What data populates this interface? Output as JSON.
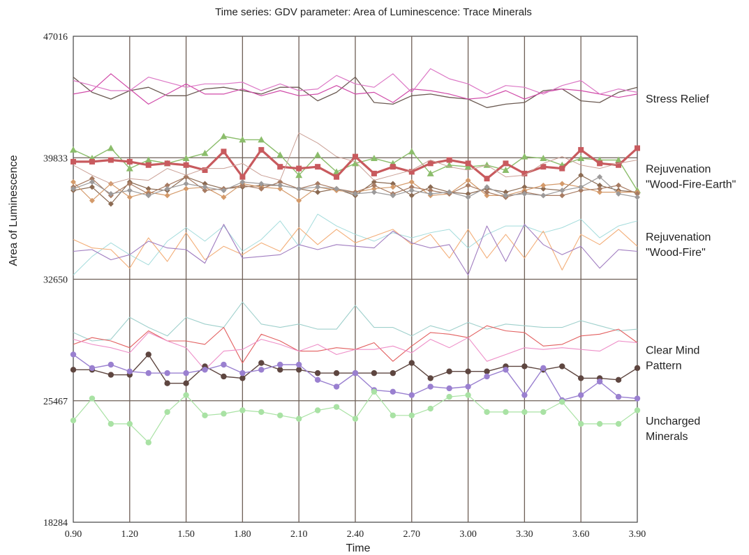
{
  "chart_data": {
    "type": "line",
    "title": "Time series: GDV parameter: Area of Luminescence: Trace Minerals",
    "xlabel": "Time",
    "ylabel": "Area of Luminescence",
    "xlim": [
      0.9,
      3.9
    ],
    "ylim": [
      18284,
      47016
    ],
    "x_ticks": [
      "0.90",
      "1.20",
      "1.50",
      "1.80",
      "2.10",
      "2.40",
      "2.70",
      "3.00",
      "3.30",
      "3.60",
      "3.90"
    ],
    "y_ticks": [
      "47016",
      "39833",
      "32650",
      "25467",
      "18284"
    ],
    "grid": true,
    "x": [
      0.9,
      1.0,
      1.1,
      1.2,
      1.3,
      1.4,
      1.5,
      1.6,
      1.7,
      1.8,
      1.9,
      2.0,
      2.1,
      2.2,
      2.3,
      2.4,
      2.5,
      2.6,
      2.7,
      2.8,
      2.9,
      3.0,
      3.1,
      3.2,
      3.3,
      3.4,
      3.5,
      3.6,
      3.7,
      3.8,
      3.9
    ],
    "group_labels": [
      {
        "lines": [
          "Stress Relief"
        ],
        "y": 43300
      },
      {
        "lines": [
          "Rejuvenation",
          "\"Wood-Fire-Earth\""
        ],
        "y": 38700
      },
      {
        "lines": [
          "Rejuvenation",
          "\"Wood-Fire\""
        ],
        "y": 34700
      },
      {
        "lines": [
          "Clear Mind",
          "Pattern"
        ],
        "y": 28000
      },
      {
        "lines": [
          "Uncharged",
          "Minerals"
        ],
        "y": 23800
      }
    ],
    "series": [
      {
        "color": "#6b5a52",
        "width": 1.3,
        "marker": "none",
        "values": [
          44600,
          43700,
          43300,
          43800,
          44000,
          43500,
          43500,
          43900,
          44000,
          43800,
          43600,
          44000,
          44000,
          43200,
          43700,
          44600,
          43100,
          43000,
          43500,
          43600,
          43400,
          43300,
          42800,
          43000,
          43100,
          43800,
          43900,
          43200,
          43100,
          43700,
          44000
        ]
      },
      {
        "color": "#d04aa8",
        "width": 1.2,
        "marker": "none",
        "values": [
          43600,
          43800,
          44800,
          43900,
          43000,
          43600,
          44200,
          43600,
          43600,
          43900,
          43500,
          43800,
          43500,
          43600,
          44100,
          43600,
          43700,
          43100,
          43900,
          43800,
          43600,
          43300,
          43400,
          43800,
          43300,
          43700,
          43900,
          43800,
          43600,
          43400,
          43600
        ]
      },
      {
        "color": "#dc77c5",
        "width": 1.2,
        "marker": "none",
        "values": [
          44400,
          44100,
          43800,
          43800,
          44600,
          44300,
          44000,
          44200,
          44200,
          44300,
          43800,
          44200,
          43800,
          43900,
          44700,
          44200,
          44000,
          44800,
          43700,
          45100,
          44500,
          44200,
          43600,
          44100,
          44000,
          43600,
          44100,
          44400,
          43600,
          43900,
          43700
        ]
      },
      {
        "color": "#8bbd6b",
        "width": 1.4,
        "marker": "triangle",
        "values": [
          40300,
          39800,
          40400,
          39200,
          39700,
          39500,
          39800,
          40100,
          41100,
          40900,
          40900,
          40000,
          38800,
          40000,
          39000,
          39500,
          39800,
          39500,
          40200,
          38900,
          39400,
          39300,
          39400,
          39100,
          39900,
          39800,
          39400,
          39800,
          39700,
          39700,
          37900
        ]
      },
      {
        "color": "#c85a5e",
        "width": 3.2,
        "marker": "square",
        "values": [
          39600,
          39600,
          39700,
          39600,
          39400,
          39500,
          39400,
          39100,
          40200,
          38700,
          40300,
          39300,
          39200,
          39300,
          38700,
          39900,
          38900,
          39300,
          39000,
          39500,
          39700,
          39500,
          38600,
          39500,
          38900,
          39300,
          39200,
          40300,
          39500,
          39400,
          40400
        ]
      },
      {
        "color": "#8b6a52",
        "width": 1.2,
        "marker": "diamond",
        "values": [
          37900,
          38100,
          37100,
          38400,
          38000,
          37900,
          38700,
          38300,
          38000,
          38100,
          38200,
          38200,
          38000,
          37800,
          38000,
          37600,
          38400,
          38300,
          37600,
          38100,
          37800,
          37700,
          38000,
          37800,
          38100,
          38000,
          37900,
          38800,
          38200,
          37900,
          37800
        ]
      },
      {
        "color": "#d49a6a",
        "width": 1.2,
        "marker": "diamond",
        "values": [
          38400,
          37300,
          38300,
          37500,
          37800,
          37600,
          38000,
          38100,
          37500,
          38300,
          38100,
          38000,
          37300,
          38100,
          37900,
          37800,
          38000,
          38100,
          38400,
          37600,
          37700,
          38500,
          37600,
          37600,
          37900,
          38200,
          38300,
          38100,
          37800,
          37800,
          37800
        ]
      },
      {
        "color": "#a77b62",
        "width": 1.2,
        "marker": "diamond",
        "values": [
          38100,
          38600,
          37600,
          38300,
          37700,
          38200,
          38700,
          37900,
          38000,
          38200,
          38000,
          38400,
          38000,
          38300,
          38000,
          37800,
          38200,
          37700,
          38100,
          37900,
          37700,
          38200,
          37800,
          37500,
          37800,
          37600,
          37600,
          37900,
          38000,
          38200,
          37700
        ]
      },
      {
        "color": "#9c9a9a",
        "width": 1.2,
        "marker": "diamond",
        "values": [
          38000,
          38400,
          37700,
          37900,
          37600,
          38000,
          38300,
          38100,
          37900,
          38400,
          38300,
          38200,
          38000,
          38100,
          38000,
          37700,
          37800,
          37600,
          37900,
          37700,
          37800,
          37500,
          38100,
          37600,
          37700,
          37600,
          37900,
          38100,
          38700,
          37700,
          37500
        ]
      },
      {
        "color": "#caa096",
        "width": 1.0,
        "marker": "none",
        "values": [
          39400,
          38800,
          38300,
          38600,
          38500,
          39200,
          38800,
          39200,
          39200,
          39500,
          38800,
          38500,
          41300,
          40700,
          39900,
          39600,
          38500,
          38800,
          39100,
          39700,
          39300,
          39100,
          39400,
          38700,
          38800,
          39500,
          39900,
          39400,
          39200,
          39500,
          39700
        ]
      },
      {
        "color": "#a4dcdc",
        "width": 1.0,
        "marker": "none",
        "values": [
          32900,
          34000,
          34800,
          34100,
          33500,
          34900,
          35700,
          34900,
          35800,
          34300,
          35000,
          36100,
          34600,
          36500,
          35800,
          35300,
          34900,
          35400,
          35100,
          35400,
          35600,
          34500,
          35300,
          35800,
          35800,
          35400,
          35700,
          36200,
          35100,
          35800,
          36100
        ]
      },
      {
        "color": "#f3ae78",
        "width": 1.1,
        "marker": "none",
        "values": [
          35000,
          34500,
          34400,
          33300,
          35100,
          33700,
          35400,
          33800,
          34600,
          34100,
          34800,
          34300,
          35700,
          34700,
          35600,
          34800,
          35200,
          35600,
          34700,
          35300,
          33900,
          35600,
          33900,
          35300,
          33900,
          35500,
          33200,
          35300,
          34700,
          35600,
          34600
        ]
      },
      {
        "color": "#a07cc0",
        "width": 1.1,
        "marker": "none",
        "values": [
          34300,
          34400,
          33800,
          34100,
          34900,
          34500,
          34400,
          33600,
          35900,
          33900,
          34000,
          34100,
          34700,
          34400,
          34700,
          34600,
          34500,
          35500,
          34800,
          34500,
          34700,
          32900,
          35800,
          33700,
          35900,
          34700,
          34100,
          34600,
          33300,
          34400,
          34300
        ]
      },
      {
        "color": "#9fd0cc",
        "width": 1.1,
        "marker": "none",
        "values": [
          29500,
          29000,
          29100,
          30400,
          29800,
          29300,
          30400,
          30000,
          29800,
          31300,
          30000,
          29800,
          30000,
          29700,
          29700,
          31100,
          29800,
          29800,
          29300,
          29900,
          29600,
          30100,
          29700,
          30000,
          29900,
          29800,
          29800,
          30200,
          29900,
          29600,
          29700
        ]
      },
      {
        "color": "#e25f5f",
        "width": 1.1,
        "marker": "none",
        "values": [
          28800,
          29200,
          29000,
          28600,
          29600,
          29000,
          29000,
          28800,
          29800,
          27700,
          29400,
          29000,
          28400,
          28400,
          28600,
          28500,
          28900,
          27800,
          28700,
          29500,
          29400,
          29200,
          29900,
          29600,
          29500,
          28700,
          28800,
          29300,
          29400,
          29700,
          28900
        ]
      },
      {
        "color": "#ee8fc8",
        "width": 1.1,
        "marker": "none",
        "values": [
          29100,
          28800,
          28600,
          28300,
          29500,
          29000,
          28600,
          27300,
          28400,
          28500,
          29100,
          28800,
          28400,
          28800,
          28200,
          28500,
          28500,
          28700,
          28300,
          29100,
          28600,
          29200,
          27800,
          28200,
          28600,
          28500,
          28600,
          28500,
          28400,
          29000,
          28900
        ]
      },
      {
        "color": "#5e4640",
        "width": 1.4,
        "marker": "circle",
        "values": [
          27300,
          27300,
          27000,
          27000,
          28200,
          26500,
          26500,
          27500,
          26900,
          26800,
          27700,
          27300,
          27300,
          27100,
          27100,
          27100,
          27100,
          27100,
          27700,
          26800,
          27200,
          27200,
          27200,
          27500,
          27500,
          27300,
          27500,
          26800,
          26800,
          26700,
          27400
        ]
      },
      {
        "color": "#9a80d0",
        "width": 1.4,
        "marker": "circle",
        "values": [
          28200,
          27400,
          27600,
          27200,
          27100,
          27100,
          27100,
          27300,
          27600,
          27100,
          27300,
          27600,
          27600,
          26700,
          26300,
          27100,
          26100,
          26000,
          25800,
          26300,
          26200,
          26300,
          26900,
          27300,
          25800,
          27400,
          25500,
          25800,
          26600,
          25700,
          25600
        ]
      },
      {
        "color": "#a9e2a4",
        "width": 1.2,
        "marker": "circle",
        "values": [
          24300,
          25600,
          24100,
          24100,
          23000,
          24800,
          25800,
          24600,
          24700,
          24900,
          24800,
          24600,
          24400,
          24900,
          25100,
          24400,
          26000,
          24600,
          24600,
          25000,
          25700,
          25800,
          24800,
          24800,
          24800,
          24800,
          25400,
          24100,
          24100,
          24100,
          24900
        ]
      }
    ]
  }
}
